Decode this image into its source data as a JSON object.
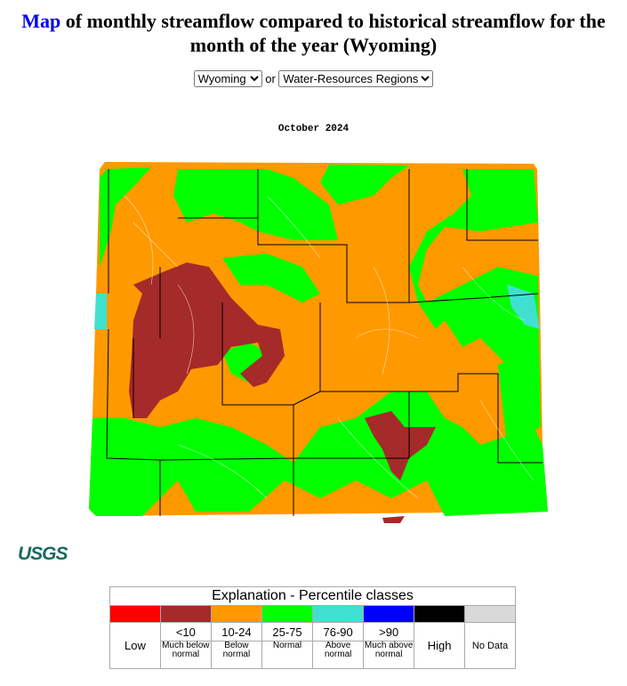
{
  "header": {
    "title_link": "Map",
    "title": "of monthly streamflow compared to historical streamflow for the month of the year (Wyoming)"
  },
  "controls": {
    "state_select": "Wyoming",
    "separator": "or",
    "region_select": "Water-Resources Regions"
  },
  "map": {
    "date": "October 2024"
  },
  "logo": "USGS",
  "legend": {
    "title": "Explanation - Percentile classes",
    "classes": [
      {
        "color": "#ff0000",
        "label": "Low"
      },
      {
        "color": "#a52a2a",
        "range": "<10",
        "description": "Much below normal"
      },
      {
        "color": "#ff9900",
        "range": "10-24",
        "description": "Below normal"
      },
      {
        "color": "#00ff00",
        "range": "25-75",
        "description": "Normal"
      },
      {
        "color": "#40e0d0",
        "range": "76-90",
        "description": "Above normal"
      },
      {
        "color": "#0000ff",
        "range": ">90",
        "description": "Much above normal"
      },
      {
        "color": "#000000",
        "label": "High"
      },
      {
        "color": "#d9d9d9",
        "label": "No Data"
      }
    ]
  }
}
